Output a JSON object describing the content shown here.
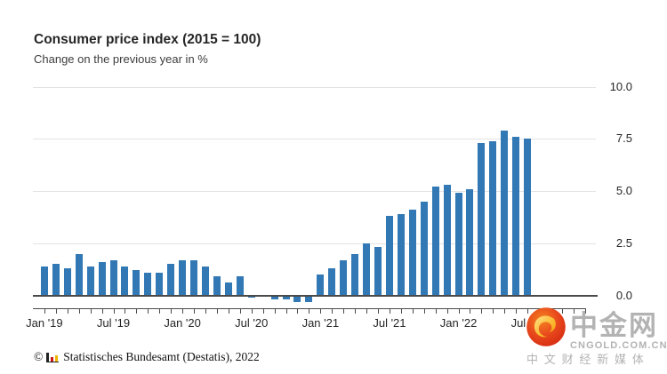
{
  "header": {
    "title": "Consumer price index (2015 = 100)",
    "subtitle": "Change on the previous year in %"
  },
  "chart_data": {
    "type": "bar",
    "title": "Consumer price index (2015 = 100)",
    "subtitle": "Change on the previous year in %",
    "ylabel": "Change on the previous year in %",
    "bar_color": "#3178b5",
    "grid": true,
    "legend": "none",
    "yticks": [
      0.0,
      2.5,
      5.0,
      7.5,
      10.0
    ],
    "ylim": [
      -0.5,
      10.0
    ],
    "yaxis_side": "right",
    "xaxis_tick_count": 48,
    "xtick_labels": [
      "Jan '19",
      "Jul '19",
      "Jan '20",
      "Jul '20",
      "Jan '21",
      "Jul '21",
      "Jan '22",
      "Jul '22"
    ],
    "x": [
      "Jan '19",
      "Feb '19",
      "Mar '19",
      "Apr '19",
      "May '19",
      "Jun '19",
      "Jul '19",
      "Aug '19",
      "Sep '19",
      "Oct '19",
      "Nov '19",
      "Dec '19",
      "Jan '20",
      "Feb '20",
      "Mar '20",
      "Apr '20",
      "May '20",
      "Jun '20",
      "Jul '20",
      "Aug '20",
      "Sep '20",
      "Oct '20",
      "Nov '20",
      "Dec '20",
      "Jan '21",
      "Feb '21",
      "Mar '21",
      "Apr '21",
      "May '21",
      "Jun '21",
      "Jul '21",
      "Aug '21",
      "Sep '21",
      "Oct '21",
      "Nov '21",
      "Dec '21",
      "Jan '22",
      "Feb '22",
      "Mar '22",
      "Apr '22",
      "May '22",
      "Jun '22",
      "Jul '22"
    ],
    "values": [
      1.4,
      1.5,
      1.3,
      2.0,
      1.4,
      1.6,
      1.7,
      1.4,
      1.2,
      1.1,
      1.1,
      1.5,
      1.7,
      1.7,
      1.4,
      0.9,
      0.6,
      0.9,
      -0.1,
      0.0,
      -0.2,
      -0.2,
      -0.3,
      -0.3,
      1.0,
      1.3,
      1.7,
      2.0,
      2.5,
      2.3,
      3.8,
      3.9,
      4.1,
      4.5,
      5.2,
      5.3,
      4.9,
      5.1,
      7.3,
      7.4,
      7.9,
      7.6,
      7.5
    ]
  },
  "footer": {
    "copyright": "©",
    "source": "Statistisches Bundesamt (Destatis), 2022"
  },
  "watermark": {
    "brand": "中金网",
    "domain": "CNGOLD.COM.CN",
    "tagline": "中文财经新媒体",
    "logo_color": "#e2391f",
    "swirl_color": "#fbbf3b",
    "text_color": "#b3b3b3"
  }
}
